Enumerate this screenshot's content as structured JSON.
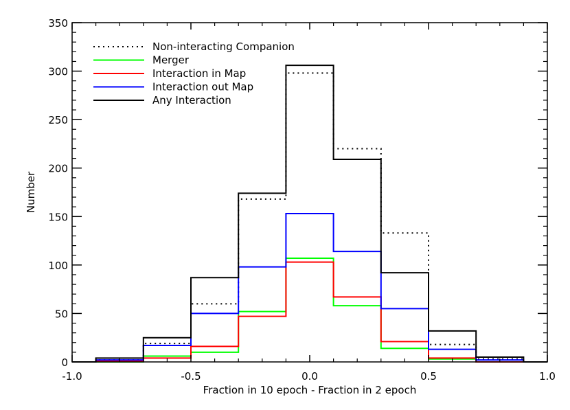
{
  "chart_data": {
    "type": "histogram",
    "xlabel": "Fraction in 10 epoch - Fraction in 2 epoch",
    "ylabel": "Number",
    "xlim": [
      -1.0,
      1.0
    ],
    "ylim": [
      0,
      350
    ],
    "xticks": [
      "-1.0",
      "-0.5",
      "0.0",
      "0.5",
      "1.0"
    ],
    "xtick_values": [
      -1.0,
      -0.5,
      0.0,
      0.5,
      1.0
    ],
    "yticks": [
      "0",
      "50",
      "100",
      "150",
      "200",
      "250",
      "300",
      "350"
    ],
    "ytick_values": [
      0,
      50,
      100,
      150,
      200,
      250,
      300,
      350
    ],
    "bin_edges": [
      -0.9,
      -0.7,
      -0.5,
      -0.3,
      -0.1,
      0.1,
      0.3,
      0.5,
      0.7,
      0.9
    ],
    "legend_position": "top-left",
    "series": [
      {
        "name": "Non-interacting Companion",
        "color": "#000000",
        "style": "dotted",
        "values": [
          2,
          19,
          60,
          168,
          298,
          220,
          133,
          18,
          3
        ]
      },
      {
        "name": "Merger",
        "color": "#00ff00",
        "style": "solid",
        "values": [
          0,
          6,
          10,
          52,
          107,
          58,
          14,
          3,
          0
        ]
      },
      {
        "name": "Interaction in Map",
        "color": "#ff0000",
        "style": "solid",
        "values": [
          1,
          4,
          16,
          47,
          103,
          67,
          21,
          4,
          0
        ]
      },
      {
        "name": "Interaction out Map",
        "color": "#0000ff",
        "style": "solid",
        "values": [
          2,
          17,
          50,
          98,
          153,
          114,
          55,
          13,
          2
        ]
      },
      {
        "name": "Any Interaction",
        "color": "#000000",
        "style": "solid",
        "values": [
          4,
          25,
          87,
          174,
          306,
          209,
          92,
          32,
          5
        ]
      }
    ]
  }
}
